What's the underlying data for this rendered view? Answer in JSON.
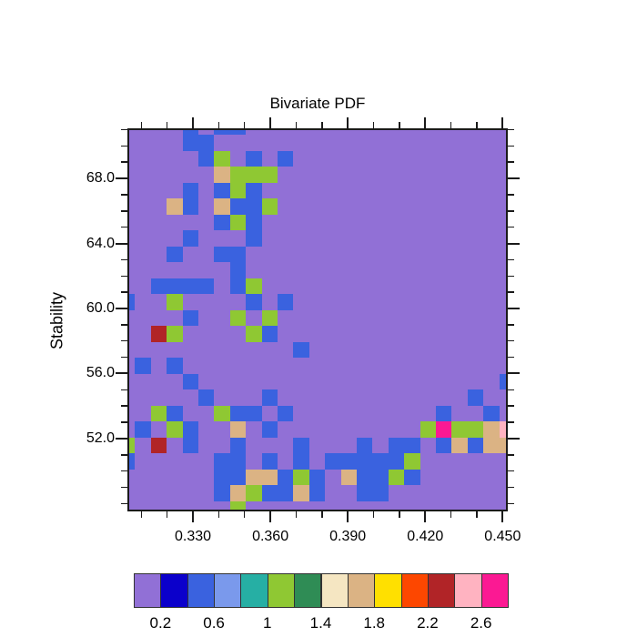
{
  "title": "Bivariate PDF",
  "y_axis": {
    "label": "Stability",
    "tick_labels": [
      "68.0",
      "64.0",
      "60.0",
      "56.0",
      "52.0"
    ]
  },
  "x_axis": {
    "tick_labels": [
      "0.330",
      "0.360",
      "0.390",
      "0.420",
      "0.450"
    ]
  },
  "colorbar": {
    "labels": [
      "0.2",
      "0.6",
      "1",
      "1.4",
      "1.8",
      "2.2",
      "2.6"
    ],
    "colors": [
      "#9170D6",
      "#0B00CB",
      "#3A62DF",
      "#7A99EC",
      "#26AFA4",
      "#8FC833",
      "#2F8C55",
      "#F5E6C2",
      "#DBB384",
      "#FFE000",
      "#FD4700",
      "#B12427",
      "#FFB3C1",
      "#FB1993"
    ]
  },
  "chart_data": {
    "type": "heatmap",
    "title": "Bivariate PDF",
    "xlabel": "",
    "ylabel": "Stability",
    "x_range": [
      0.3046,
      0.452
    ],
    "y_range": [
      47.52,
      71.08
    ],
    "x_ticks_major": [
      0.33,
      0.36,
      0.39,
      0.42,
      0.45
    ],
    "x_ticks_minor": [
      0.31,
      0.32,
      0.34,
      0.35,
      0.37,
      0.38,
      0.4,
      0.41,
      0.43,
      0.44
    ],
    "y_ticks_major": [
      68.0,
      64.0,
      60.0,
      56.0,
      52.0
    ],
    "y_ticks_minor": [
      71,
      70,
      69,
      67,
      66,
      65,
      63,
      62,
      61,
      59,
      58,
      57,
      55,
      54,
      53,
      51,
      50,
      49,
      48
    ],
    "legend_position": "bottom colorbar",
    "grid_on": false,
    "colorbar_bin_width": 0.2,
    "colorbar_bin_starts": [
      0.0,
      0.2,
      0.4,
      0.6,
      0.8,
      1.0,
      1.2,
      1.4,
      1.6,
      1.8,
      2.0,
      2.2,
      2.4,
      2.6
    ],
    "palette": {
      ".": {
        "color": "#9170D6",
        "value_bin": "0.0-0.2 (background)"
      },
      "B": {
        "color": "#3A62DF",
        "value_bin": "0.4-0.6"
      },
      "G": {
        "color": "#8FC833",
        "value_bin": "1.0-1.2"
      },
      "T": {
        "color": "#DBB384",
        "value_bin": "1.6-1.8"
      },
      "R": {
        "color": "#B12427",
        "value_bin": "2.2-2.4"
      },
      "P": {
        "color": "#FFB3C1",
        "value_bin": "2.4-2.6"
      },
      "M": {
        "color": "#FB1993",
        "value_bin": "2.6-2.8"
      }
    },
    "grid_cols": 25,
    "grid_rows_count": 25,
    "grid_rows": [
      "....B.BB.................",
      "....BB...................",
      ".....BG.B.B..............",
      "......TGGG...............",
      "....B.BGB................",
      "...TB.TBBG...............",
      "......BGB................",
      "....B...B................",
      "...B..BB.................",
      ".......B.................",
      "..BBBB.BG................",
      "B..G....B.B..............",
      "....B..G.G...............",
      "..RG....GB...............",
      "...........B.............",
      ".B.B.....................",
      "....B...................B",
      ".....B...B............B..",
      "..GB..GBB.B.........B..B.",
      ".B.GB..T.B.........GMGGTP",
      "G.R.B..B...B...B.BB.BTBTT",
      "B.....BB.B.B.BBBBBG......",
      "......BBTTBGB.TBBGB......",
      "......BTGBBTB..BB........",
      ".......G................."
    ]
  }
}
